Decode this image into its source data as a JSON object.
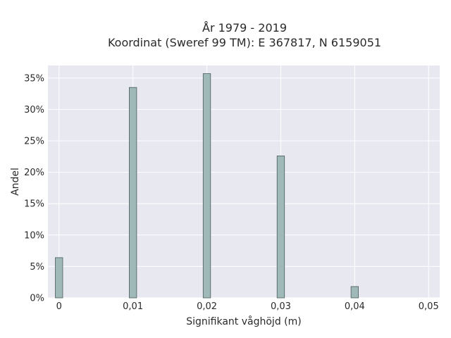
{
  "chart_data": {
    "type": "bar",
    "title_line1": "År 1979 - 2019",
    "title_line2": "Koordinat (Sweref 99 TM): E 367817, N 6159051",
    "xlabel": "Signifikant våghöjd (m)",
    "ylabel": "Andel",
    "xlim": [
      -0.0015,
      0.0515
    ],
    "ylim": [
      0,
      0.37
    ],
    "x_ticks": [
      0,
      0.01,
      0.02,
      0.03,
      0.04,
      0.05
    ],
    "x_tick_labels": [
      "0",
      "0,01",
      "0,02",
      "0,03",
      "0,04",
      "0,05"
    ],
    "y_ticks": [
      0,
      0.05,
      0.1,
      0.15,
      0.2,
      0.25,
      0.3,
      0.35
    ],
    "y_tick_labels": [
      "0%",
      "5%",
      "10%",
      "15%",
      "20%",
      "25%",
      "30%",
      "35%"
    ],
    "bar_width": 0.001,
    "x": [
      0,
      0.01,
      0.02,
      0.03,
      0.04
    ],
    "values": [
      0.064,
      0.335,
      0.357,
      0.226,
      0.018
    ],
    "grid": true,
    "colors": {
      "bar_fill": "#9fb9b9",
      "bar_edge": "#4a5a5a",
      "plot_bg": "#e8e8f1",
      "grid": "#ffffff"
    }
  }
}
